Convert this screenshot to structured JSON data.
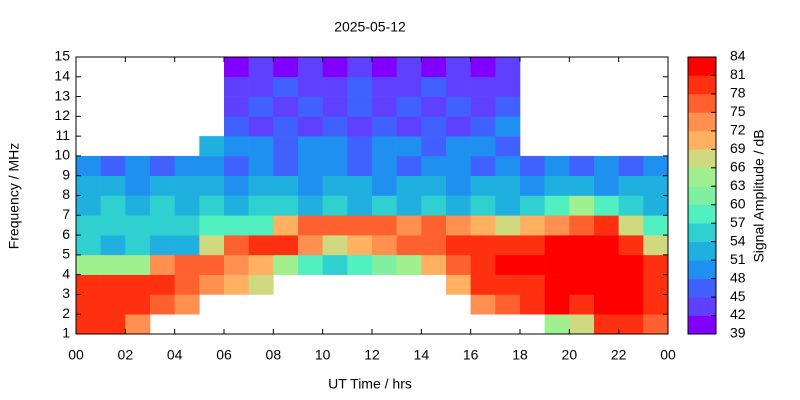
{
  "chart_data": {
    "type": "heatmap",
    "title": "2025-05-12",
    "x_label": "UT Time / hrs",
    "y_label": "Frequency / MHz",
    "colorbar_label": "Signal Amplitude / dB",
    "xlim": [
      0,
      24
    ],
    "xticks": [
      {
        "value": 0,
        "label": "00"
      },
      {
        "value": 2,
        "label": "02"
      },
      {
        "value": 4,
        "label": "04"
      },
      {
        "value": 6,
        "label": "06"
      },
      {
        "value": 8,
        "label": "08"
      },
      10,
      12,
      14,
      16,
      18,
      20,
      22,
      {
        "value": 24,
        "label": "00"
      }
    ],
    "ylim": [
      1,
      15
    ],
    "yticks": [
      1,
      2,
      3,
      4,
      5,
      6,
      7,
      8,
      9,
      10,
      11,
      12,
      13,
      14,
      15
    ],
    "zlim": [
      39,
      84
    ],
    "zticks": [
      39,
      42,
      45,
      48,
      51,
      54,
      57,
      60,
      63,
      66,
      69,
      72,
      75,
      78,
      81,
      84
    ],
    "colors": [
      "#8000ff",
      "#6040ff",
      "#4060ff",
      "#2090f0",
      "#20b0e0",
      "#30d0d0",
      "#50f0c0",
      "#80f0a0",
      "#a0f090",
      "#d0d880",
      "#ffb060",
      "#ff9050",
      "#ff6030",
      "#ff3010",
      "#ff0000"
    ],
    "xbins": [
      0,
      1,
      2,
      3,
      4,
      5,
      6,
      7,
      8,
      9,
      10,
      11,
      12,
      13,
      14,
      15,
      16,
      17,
      18,
      19,
      20,
      21,
      22,
      23,
      24
    ],
    "ybins": [
      1,
      2,
      3,
      4,
      5,
      6,
      7,
      8,
      9,
      10,
      11,
      12,
      13,
      14,
      15
    ],
    "z": [
      [
        78,
        79,
        72,
        null,
        null,
        null,
        null,
        null,
        null,
        null,
        null,
        null,
        null,
        null,
        null,
        null,
        null,
        null,
        null,
        63,
        66,
        78,
        78,
        75
      ],
      [
        80,
        80,
        78,
        75,
        72,
        null,
        null,
        null,
        null,
        null,
        null,
        null,
        null,
        null,
        null,
        null,
        72,
        75,
        78,
        81,
        80,
        81,
        81,
        80
      ],
      [
        80,
        80,
        78,
        78,
        75,
        72,
        70,
        66,
        null,
        null,
        null,
        null,
        null,
        null,
        null,
        69,
        78,
        79,
        80,
        81,
        81,
        81,
        81,
        80
      ],
      [
        63,
        63,
        63,
        72,
        75,
        75,
        72,
        70,
        63,
        57,
        54,
        57,
        60,
        63,
        69,
        75,
        80,
        81,
        81,
        81,
        81,
        81,
        81,
        80
      ],
      [
        54,
        51,
        54,
        51,
        52,
        66,
        75,
        78,
        78,
        72,
        66,
        69,
        72,
        75,
        75,
        78,
        78,
        78,
        80,
        81,
        81,
        81,
        78,
        66
      ],
      [
        54,
        54,
        54,
        54,
        54,
        57,
        57,
        57,
        69,
        75,
        75,
        75,
        75,
        72,
        75,
        72,
        69,
        66,
        69,
        72,
        75,
        78,
        66,
        57
      ],
      [
        51,
        54,
        51,
        54,
        51,
        54,
        51,
        54,
        54,
        51,
        54,
        51,
        54,
        51,
        54,
        51,
        54,
        51,
        54,
        57,
        63,
        57,
        54,
        51
      ],
      [
        51,
        51,
        48,
        51,
        51,
        51,
        48,
        51,
        51,
        48,
        51,
        51,
        48,
        51,
        51,
        48,
        51,
        51,
        48,
        51,
        51,
        48,
        51,
        51
      ],
      [
        48,
        45,
        48,
        45,
        48,
        48,
        45,
        48,
        45,
        48,
        48,
        45,
        48,
        45,
        48,
        48,
        45,
        48,
        45,
        48,
        45,
        48,
        45,
        48
      ],
      [
        null,
        null,
        null,
        null,
        null,
        51,
        48,
        48,
        45,
        48,
        48,
        45,
        48,
        48,
        45,
        48,
        48,
        45,
        null,
        null,
        null,
        null,
        null,
        null
      ],
      [
        null,
        null,
        null,
        null,
        null,
        null,
        45,
        42,
        45,
        42,
        45,
        42,
        45,
        42,
        45,
        42,
        45,
        48,
        null,
        null,
        null,
        null,
        null,
        null
      ],
      [
        null,
        null,
        null,
        null,
        null,
        null,
        42,
        45,
        42,
        45,
        42,
        45,
        42,
        45,
        42,
        45,
        42,
        45,
        null,
        null,
        null,
        null,
        null,
        null
      ],
      [
        null,
        null,
        null,
        null,
        null,
        null,
        42,
        42,
        45,
        42,
        42,
        45,
        42,
        42,
        45,
        42,
        42,
        42,
        null,
        null,
        null,
        null,
        null,
        null
      ],
      [
        null,
        null,
        null,
        null,
        null,
        null,
        39,
        42,
        39,
        42,
        39,
        42,
        39,
        42,
        39,
        42,
        39,
        42,
        null,
        null,
        null,
        null,
        null,
        null
      ]
    ]
  }
}
